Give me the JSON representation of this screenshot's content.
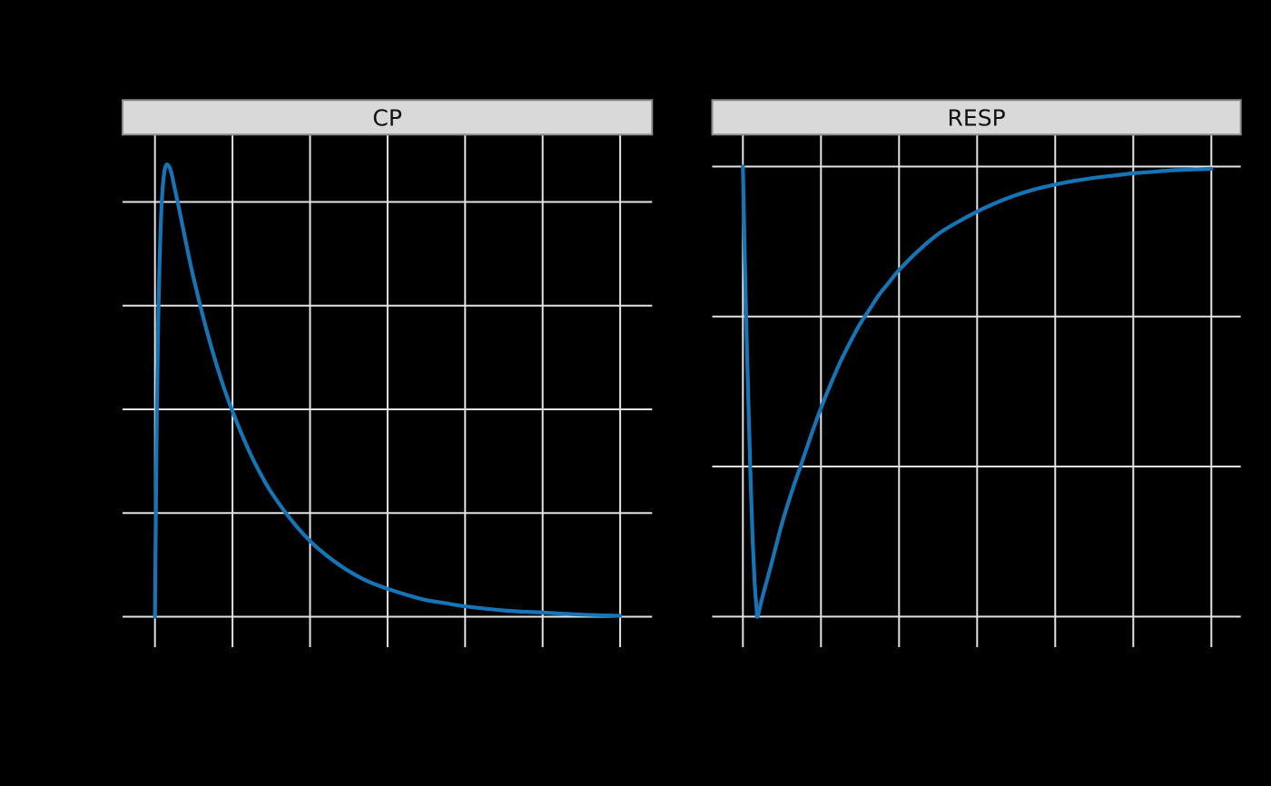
{
  "figure": {
    "background": "#000000",
    "grid_color": "#e3e3e3",
    "strip_fill": "#d9d9d9",
    "strip_border": "#8a8a8a",
    "strip_text_color": "#111111",
    "line_color": "#1575b7"
  },
  "chart_data": [
    {
      "type": "line",
      "title": "CP",
      "xlabel": "",
      "ylabel": "",
      "legend": "none",
      "grid": true,
      "xlim": [
        0,
        24
      ],
      "ylim": [
        0,
        4.65
      ],
      "x_gridlines": [
        0,
        4,
        8,
        12,
        16,
        20,
        24
      ],
      "y_gridlines": [
        0,
        1,
        2,
        3,
        4
      ],
      "x": [
        0,
        0.05,
        0.1,
        0.15,
        0.2,
        0.3,
        0.4,
        0.5,
        0.6,
        0.7,
        0.8,
        0.9,
        1,
        1.25,
        1.5,
        1.75,
        2,
        2.5,
        3,
        3.5,
        4,
        4.5,
        5,
        5.5,
        6,
        7,
        8,
        9,
        10,
        11,
        12,
        13,
        14,
        15,
        16,
        18,
        20,
        22,
        24
      ],
      "y": [
        0,
        1.12,
        1.98,
        2.64,
        3.14,
        3.79,
        4.14,
        4.31,
        4.36,
        4.35,
        4.31,
        4.24,
        4.15,
        3.93,
        3.7,
        3.47,
        3.26,
        2.88,
        2.54,
        2.24,
        1.98,
        1.75,
        1.54,
        1.36,
        1.2,
        0.94,
        0.73,
        0.57,
        0.44,
        0.34,
        0.27,
        0.21,
        0.16,
        0.13,
        0.1,
        0.06,
        0.04,
        0.02,
        0.01
      ]
    },
    {
      "type": "line",
      "title": "RESP",
      "xlabel": "",
      "ylabel": "",
      "legend": "none",
      "grid": true,
      "xlim": [
        0,
        24
      ],
      "ylim": [
        19.99,
        52.13
      ],
      "x_gridlines": [
        0,
        4,
        8,
        12,
        16,
        20,
        24
      ],
      "y_gridlines": [
        20,
        30,
        40,
        50
      ],
      "x": [
        0,
        0.1,
        0.2,
        0.3,
        0.4,
        0.5,
        0.6,
        0.7,
        0.75,
        1,
        1.5,
        2,
        2.5,
        3,
        3.5,
        4,
        4.5,
        5,
        5.5,
        6,
        6.5,
        7,
        7.5,
        8,
        9,
        10,
        11,
        12,
        13,
        14,
        15,
        16,
        17,
        18,
        19,
        20,
        21,
        22,
        23,
        24
      ],
      "y": [
        50,
        43.9,
        38.2,
        33.3,
        28.9,
        25.2,
        22.3,
        20.6,
        20,
        21.3,
        23.7,
        26.2,
        28.3,
        30.2,
        32.1,
        33.9,
        35.5,
        37,
        38.3,
        39.5,
        40.5,
        41.5,
        42.3,
        43.1,
        44.4,
        45.5,
        46.3,
        47,
        47.6,
        48.1,
        48.5,
        48.8,
        49.05,
        49.25,
        49.4,
        49.55,
        49.65,
        49.75,
        49.8,
        49.85
      ]
    }
  ]
}
